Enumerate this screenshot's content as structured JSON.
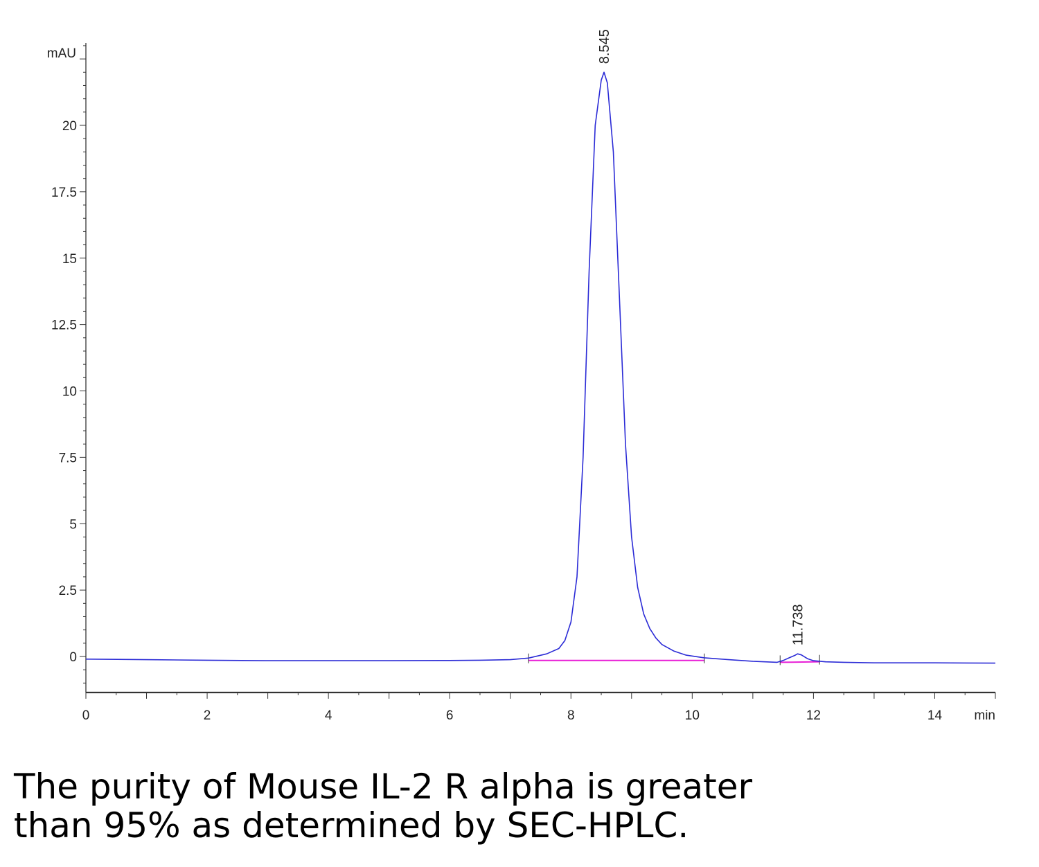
{
  "chart_data": {
    "type": "line",
    "title": "",
    "xlabel": "min",
    "ylabel": "mAU",
    "xlim": [
      0,
      15
    ],
    "ylim": [
      -1.3,
      23
    ],
    "grid": false,
    "x_ticks": [
      "0",
      "2",
      "4",
      "6",
      "8",
      "10",
      "12",
      "14"
    ],
    "x_tick_values": [
      0,
      2,
      4,
      6,
      8,
      10,
      12,
      14
    ],
    "y_ticks": [
      "0",
      "2.5",
      "5",
      "7.5",
      "10",
      "12.5",
      "15",
      "17.5",
      "20"
    ],
    "y_tick_values": [
      0,
      2.5,
      5,
      7.5,
      10,
      12.5,
      15,
      17.5,
      20
    ],
    "colors": {
      "signal": "#2b2bd6",
      "baseline": "#e81ed6",
      "axis": "#333333"
    },
    "series": [
      {
        "x": [
          0,
          1,
          2,
          3,
          4,
          5,
          6,
          6.5,
          7.0,
          7.3,
          7.6,
          7.8,
          7.9,
          8.0,
          8.1,
          8.2,
          8.3,
          8.4,
          8.5,
          8.545,
          8.6,
          8.7,
          8.8,
          8.9,
          9.0,
          9.1,
          9.2,
          9.3,
          9.4,
          9.5,
          9.7,
          9.9,
          10.2,
          10.6,
          11.0,
          11.4,
          11.5,
          11.6,
          11.7,
          11.738,
          11.8,
          11.9,
          12.0,
          12.2,
          12.5,
          13.0,
          14.0,
          15.0
        ],
        "y": [
          -0.1,
          -0.12,
          -0.14,
          -0.16,
          -0.16,
          -0.16,
          -0.15,
          -0.14,
          -0.12,
          -0.06,
          0.1,
          0.3,
          0.6,
          1.3,
          3.0,
          7.5,
          14.5,
          20.0,
          21.7,
          22.0,
          21.6,
          19.0,
          13.5,
          8.0,
          4.5,
          2.6,
          1.6,
          1.05,
          0.7,
          0.45,
          0.2,
          0.05,
          -0.05,
          -0.12,
          -0.18,
          -0.22,
          -0.15,
          -0.05,
          0.05,
          0.1,
          0.06,
          -0.08,
          -0.16,
          -0.2,
          -0.22,
          -0.24,
          -0.24,
          -0.25
        ]
      }
    ],
    "baseline_segments": [
      {
        "x": [
          7.3,
          10.2
        ],
        "y": [
          -0.15,
          -0.15
        ]
      },
      {
        "x": [
          11.45,
          12.1
        ],
        "y": [
          -0.22,
          -0.2
        ]
      }
    ],
    "peaks": [
      {
        "label": "8.545",
        "x": 8.545,
        "y": 22.0
      },
      {
        "label": "11.738",
        "x": 11.738,
        "y": 0.1
      }
    ]
  },
  "caption": {
    "line1": "The purity of Mouse IL-2 R alpha is greater",
    "line2": "than 95% as determined by SEC-HPLC."
  }
}
